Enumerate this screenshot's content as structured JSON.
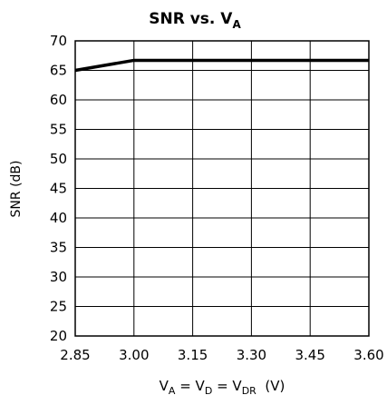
{
  "chart_data": {
    "type": "line",
    "title": {
      "main": "SNR vs. V",
      "sub": "A"
    },
    "ylabel": "SNR (dB)",
    "xlabel_parts": [
      {
        "text": "V",
        "sub": false
      },
      {
        "text": "A",
        "sub": true
      },
      {
        "text": " = V",
        "sub": false
      },
      {
        "text": "D",
        "sub": true
      },
      {
        "text": " = V",
        "sub": false
      },
      {
        "text": "DR",
        "sub": true
      },
      {
        "text": "  (V)",
        "sub": false
      }
    ],
    "xlim": [
      2.85,
      3.6
    ],
    "ylim": [
      20,
      70
    ],
    "x_ticks": [
      2.85,
      3.0,
      3.15,
      3.3,
      3.45,
      3.6
    ],
    "x_tick_labels": [
      "2.85",
      "3.00",
      "3.15",
      "3.30",
      "3.45",
      "3.60"
    ],
    "y_ticks": [
      20,
      25,
      30,
      35,
      40,
      45,
      50,
      55,
      60,
      65,
      70
    ],
    "y_tick_labels": [
      "20",
      "25",
      "30",
      "35",
      "40",
      "45",
      "50",
      "55",
      "60",
      "65",
      "70"
    ],
    "grid": true,
    "series": [
      {
        "x": [
          2.85,
          3.0,
          3.15,
          3.3,
          3.45,
          3.6
        ],
        "y": [
          65.0,
          66.7,
          66.7,
          66.7,
          66.7,
          66.7
        ],
        "color": "#000000"
      }
    ]
  }
}
